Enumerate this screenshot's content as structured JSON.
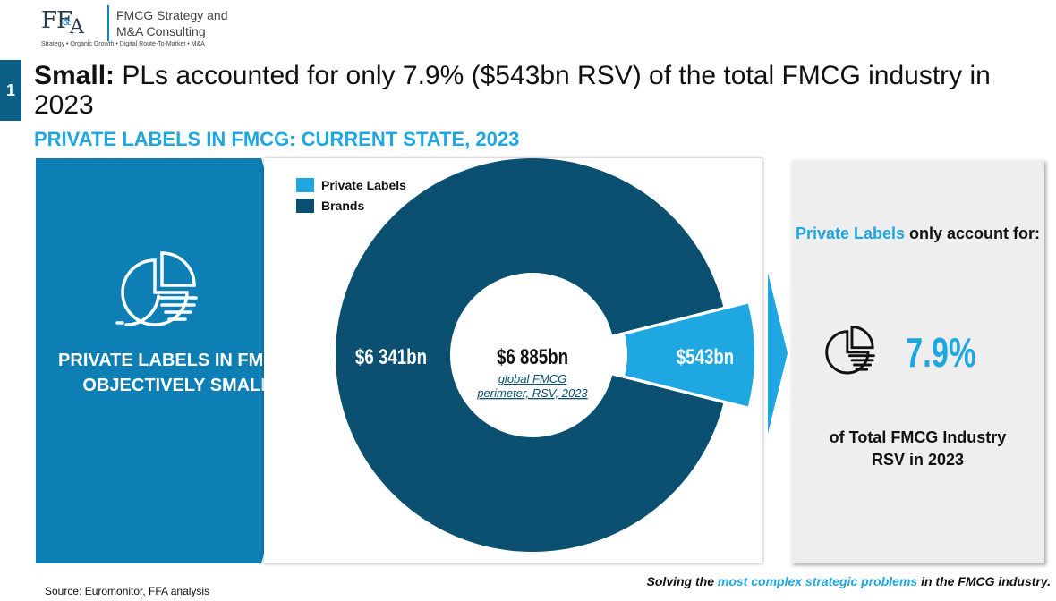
{
  "logo": {
    "mark": "FF",
    "amp": "&",
    "a": "A",
    "company_line1": "FMCG Strategy and",
    "company_line2": "M&A Consulting",
    "tagline": "Strategy • Organic Growth • Digital Route-To-Market • M&A"
  },
  "slide_number": "1",
  "headline": {
    "bold": "Small:",
    "rest": " PLs accounted for only 7.9% ($543bn RSV) of the total FMCG industry in 2023"
  },
  "subtitle": "PRIVATE LABELS IN FMCG: CURRENT STATE, 2023",
  "left_panel": {
    "line1": "PRIVATE LABELS IN FMCG:",
    "line2": "OBJECTIVELY SMALL",
    "icon": "pie-chart-icon"
  },
  "right_panel": {
    "head_highlight": "Private Labels",
    "head_rest": " only account for:",
    "percent": "7.9%",
    "foot_line1": "of Total FMCG Industry",
    "foot_line2": "RSV in 2023",
    "icon": "pie-chart-icon"
  },
  "source": "Source: Euromonitor, FFA analysis",
  "footer_tagline": {
    "pre": "Solving the ",
    "highlight": "most complex strategic problems",
    "post": " in the FMCG industry."
  },
  "colors": {
    "brands": "#0b5070",
    "private_labels": "#1ea7e1",
    "left_panel": "#0d7fb5",
    "accent": "#1ea7e1"
  },
  "chart_data": {
    "type": "pie",
    "variant": "donut",
    "title": "",
    "series": [
      {
        "name": "Private Labels",
        "value": 543,
        "label": "$543bn",
        "color": "#1ea7e1",
        "exploded": true
      },
      {
        "name": "Brands",
        "value": 6341,
        "label": "$6 341bn",
        "color": "#0b5070",
        "exploded": false
      }
    ],
    "center_value": "$6 885bn",
    "center_caption_line1": "global FMCG",
    "center_caption_line2": "perimeter, RSV, 2023",
    "legend_position": "top-left",
    "unit": "bn USD RSV"
  }
}
